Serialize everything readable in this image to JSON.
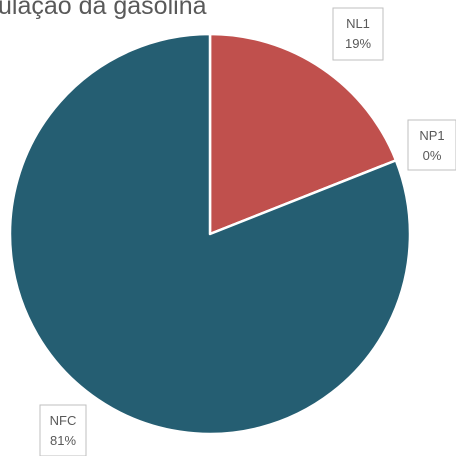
{
  "chart_data": {
    "type": "pie",
    "title": "ulação da gasolina",
    "categories": [
      "NL1",
      "NP1",
      "NFC"
    ],
    "values": [
      19,
      0,
      81
    ],
    "value_labels": [
      "19%",
      "0%",
      "81%"
    ],
    "colors": [
      "#c0504d",
      "#4f81bd",
      "#255e72"
    ]
  }
}
